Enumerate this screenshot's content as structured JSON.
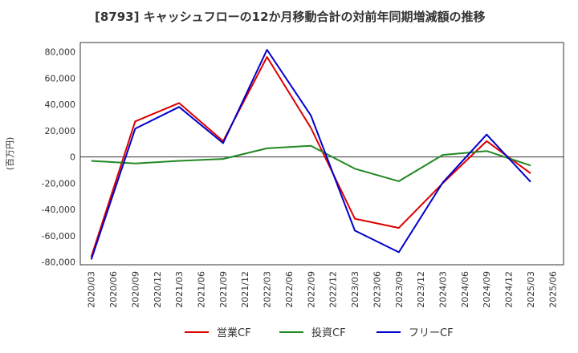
{
  "chart_data": {
    "type": "line",
    "title": "[8793]  キャッシュフローの12か月移動合計の対前年同期増減額の推移",
    "ylabel": "(百万円)",
    "xlabel": "",
    "ylim": [
      -82000,
      87000
    ],
    "yticks": [
      80000,
      60000,
      40000,
      20000,
      0,
      -20000,
      -40000,
      -60000,
      -80000
    ],
    "ytick_labels": [
      "80,000",
      "60,000",
      "40,000",
      "20,000",
      "0",
      "-20,000",
      "-40,000",
      "-60,000",
      "-80,000"
    ],
    "x": [
      "2020/03",
      "2020/06",
      "2020/09",
      "2020/12",
      "2021/03",
      "2021/06",
      "2021/09",
      "2021/12",
      "2022/03",
      "2022/06",
      "2022/09",
      "2022/12",
      "2023/03",
      "2023/06",
      "2023/09",
      "2023/12",
      "2024/03",
      "2024/06",
      "2024/09",
      "2024/12",
      "2025/03",
      "2025/06"
    ],
    "grid": true,
    "legend_position": "bottom",
    "series": [
      {
        "name": "営業CF",
        "color": "#dd0000",
        "values": [
          -76000,
          null,
          27000,
          null,
          41000,
          null,
          12000,
          null,
          76000,
          null,
          22000,
          null,
          -47000,
          null,
          -54000,
          null,
          -20000,
          null,
          12000,
          null,
          -12500,
          null
        ]
      },
      {
        "name": "投資CF",
        "color": "#228822",
        "values": [
          -3000,
          null,
          -5000,
          null,
          -3000,
          null,
          -1500,
          null,
          6500,
          null,
          8500,
          null,
          -9000,
          null,
          -18500,
          null,
          1500,
          null,
          4500,
          null,
          -6500,
          null
        ]
      },
      {
        "name": "フリーCF",
        "color": "#0000cc",
        "values": [
          -78000,
          null,
          21500,
          null,
          38000,
          null,
          10500,
          null,
          81500,
          null,
          31500,
          null,
          -56000,
          null,
          -72500,
          null,
          -19500,
          null,
          17000,
          null,
          -19000,
          null
        ]
      }
    ]
  }
}
